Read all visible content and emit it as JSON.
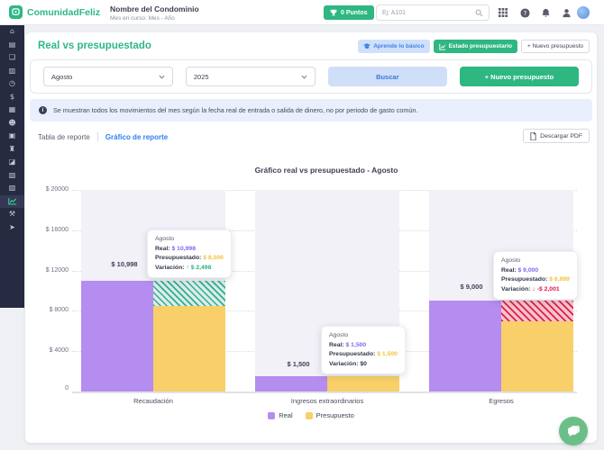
{
  "header": {
    "brand": "ComunidadFeliz",
    "condo_name": "Nombre del Condominio",
    "subtitle": "Mes en curso: Mes - Año",
    "points_label": "0 Puntos",
    "search_placeholder": "Ej: A101"
  },
  "sidebar": {
    "items": [
      {
        "name": "home",
        "glyph": "⌂"
      },
      {
        "name": "payments",
        "glyph": "▤"
      },
      {
        "name": "documents",
        "glyph": "❏"
      },
      {
        "name": "news",
        "glyph": "▥"
      },
      {
        "name": "history",
        "glyph": "◷"
      },
      {
        "name": "money",
        "glyph": "$"
      },
      {
        "name": "calculator",
        "glyph": "▦"
      },
      {
        "name": "community",
        "glyph": "☻"
      },
      {
        "name": "briefcase",
        "glyph": "▣"
      },
      {
        "name": "bank",
        "glyph": "♜"
      },
      {
        "name": "folder",
        "glyph": "◪"
      },
      {
        "name": "clipboard",
        "glyph": "▧"
      },
      {
        "name": "reports",
        "glyph": "▨"
      },
      {
        "name": "reports-chart",
        "glyph": null,
        "active": true
      },
      {
        "name": "tools",
        "glyph": "⚒"
      },
      {
        "name": "send",
        "glyph": "➤"
      }
    ]
  },
  "page": {
    "title": "Real vs presupuestado",
    "badges": {
      "learn": "Aprende lo básico",
      "status": "Estado presupuestario",
      "new_budget": "+ Nuevo presupuesto"
    },
    "filters": {
      "month": "Agosto",
      "year": "2025",
      "search_label": "Buscar",
      "new_budget_label": "+ Nuevo presupuesto"
    },
    "banner": "Se muestran todos los movimientos del mes según la fecha real de entrada o salida de dinero, no por periodo de gasto común.",
    "tabs": {
      "table": "Tabla de reporte",
      "chart": "Gráfico de reporte"
    },
    "download_pdf": "Descargar PDF"
  },
  "chart_data": {
    "type": "bar",
    "title": "Gráfico real vs presupuestado - Agosto",
    "categories": [
      "Recaudación",
      "Ingresos extraordinarios",
      "Egresos"
    ],
    "series": [
      {
        "name": "Real",
        "color": "#b58cf0",
        "values": [
          10998,
          1500,
          9000
        ]
      },
      {
        "name": "Presupuesto",
        "color": "#f8cf68",
        "values": [
          8500,
          1500,
          6999
        ]
      }
    ],
    "overage": [
      "green",
      null,
      "red"
    ],
    "bar_labels": [
      "$ 10,998",
      "$ 1,500",
      "$ 9,000"
    ],
    "y_ticks": [
      "$ 20000",
      "$ 16000",
      "$ 12000",
      "$ 8000",
      "$ 4000",
      "0"
    ],
    "ylim": [
      0,
      20000
    ],
    "grid": "dotted",
    "legend": [
      "Real",
      "Presupuesto"
    ],
    "legend_position": "bottom",
    "tooltip_labels": {
      "real": "Real:",
      "presupuestado": "Presupuestado:",
      "variacion": "Variación:"
    },
    "tooltips": [
      {
        "month": "Agosto",
        "real": "$ 10,998",
        "presupuestado": "$ 8,500",
        "arrow": "↑",
        "variacion": "$ 2,498",
        "direction": "up"
      },
      {
        "month": "Agosto",
        "real": "$ 1,500",
        "presupuestado": "$ 1,500",
        "arrow": "",
        "variacion": "$0",
        "direction": "flat"
      },
      {
        "month": "Agosto",
        "real": "$ 9,000",
        "presupuestado": "$ 6,999",
        "arrow": "↓",
        "variacion": "-$ 2,001",
        "direction": "down"
      }
    ]
  }
}
